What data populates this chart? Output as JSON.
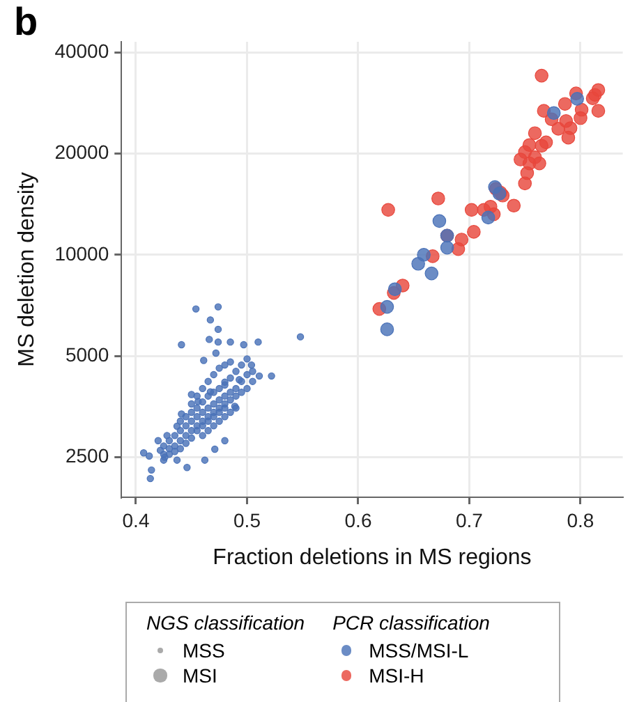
{
  "chart_data": {
    "type": "bubble",
    "title": "b",
    "xlabel": "Fraction deletions in MS regions",
    "ylabel": "MS deletion density",
    "xlim": [
      0.387,
      0.838
    ],
    "xticks": [
      0.4,
      0.5,
      0.6,
      0.7,
      0.8
    ],
    "ylim": [
      1900,
      43000
    ],
    "yticks": [
      2500,
      5000,
      10000,
      20000,
      40000
    ],
    "log": "y",
    "grid": true,
    "legend": "bottom",
    "legend_title": "PCR classification",
    "annotations": [
      "NGS classification"
    ],
    "size_legend": [
      {
        "value": 0.25,
        "label": "MSS"
      },
      {
        "value": 1,
        "label": "MSI"
      }
    ],
    "series": [
      {
        "name": "MSS/MSI-L",
        "color": "#4a72b8",
        "x": [
          0.454,
          0.474,
          0.467,
          0.474,
          0.548,
          0.441,
          0.466,
          0.474,
          0.485,
          0.51,
          0.497,
          0.472,
          0.461,
          0.504,
          0.511,
          0.522,
          0.493,
          0.48,
          0.467,
          0.456,
          0.45,
          0.489,
          0.441,
          0.437,
          0.428,
          0.422,
          0.407,
          0.412,
          0.414,
          0.413,
          0.446,
          0.462,
          0.471,
          0.48,
          0.437,
          0.426,
          0.42,
          0.425,
          0.425,
          0.425,
          0.43,
          0.43,
          0.43,
          0.435,
          0.435,
          0.435,
          0.44,
          0.44,
          0.44,
          0.44,
          0.445,
          0.445,
          0.445,
          0.445,
          0.45,
          0.45,
          0.45,
          0.45,
          0.45,
          0.455,
          0.455,
          0.455,
          0.455,
          0.455,
          0.46,
          0.46,
          0.46,
          0.46,
          0.46,
          0.46,
          0.465,
          0.465,
          0.465,
          0.465,
          0.465,
          0.465,
          0.47,
          0.47,
          0.47,
          0.47,
          0.47,
          0.47,
          0.475,
          0.475,
          0.475,
          0.475,
          0.475,
          0.475,
          0.48,
          0.48,
          0.48,
          0.48,
          0.48,
          0.48,
          0.485,
          0.485,
          0.485,
          0.485,
          0.485,
          0.49,
          0.49,
          0.49,
          0.49,
          0.495,
          0.495,
          0.495,
          0.5,
          0.5,
          0.5,
          0.505,
          0.505,
          0.797,
          0.776,
          0.723,
          0.727,
          0.717,
          0.673,
          0.68,
          0.659,
          0.654,
          0.666,
          0.633,
          0.626,
          0.626,
          0.68
        ],
        "values": [
          6900,
          7000,
          6400,
          6000,
          5700,
          5400,
          5600,
          5500,
          5500,
          5500,
          5400,
          5100,
          4850,
          4700,
          4360,
          4360,
          4250,
          4180,
          3910,
          3660,
          3840,
          3540,
          3360,
          3090,
          2900,
          2620,
          2575,
          2520,
          2290,
          2160,
          2330,
          2450,
          2640,
          2800,
          2450,
          2500,
          2800,
          2550,
          2700,
          2450,
          2650,
          2800,
          2550,
          2700,
          2900,
          2600,
          2800,
          3000,
          2650,
          3200,
          2900,
          3100,
          2750,
          3300,
          3000,
          3200,
          2850,
          3400,
          3600,
          3100,
          3300,
          3000,
          3500,
          3800,
          3200,
          3400,
          3100,
          3650,
          4000,
          2900,
          3300,
          3500,
          3200,
          3800,
          4200,
          3000,
          3400,
          3600,
          3300,
          3900,
          4400,
          3100,
          3500,
          3700,
          3400,
          4000,
          4600,
          3200,
          3600,
          3800,
          3500,
          4100,
          4700,
          3300,
          3700,
          3900,
          4300,
          4800,
          3400,
          3800,
          4000,
          4500,
          3500,
          3900,
          4200,
          4700,
          4000,
          4400,
          4900,
          4200,
          4500,
          29100,
          26400,
          15900,
          15200,
          12900,
          12600,
          10500,
          10000,
          9400,
          8800,
          7900,
          7000,
          6000,
          11400
        ],
        "sizes": [
          0.25,
          0.25,
          0.25,
          0.25,
          0.25,
          0.25,
          0.25,
          0.25,
          0.25,
          0.25,
          0.25,
          0.25,
          0.25,
          0.25,
          0.25,
          0.25,
          0.25,
          0.25,
          0.25,
          0.25,
          0.25,
          0.25,
          0.25,
          0.25,
          0.25,
          0.25,
          0.25,
          0.25,
          0.25,
          0.25,
          0.25,
          0.25,
          0.25,
          0.25,
          0.25,
          0.25,
          0.25,
          0.25,
          0.25,
          0.25,
          0.25,
          0.25,
          0.25,
          0.25,
          0.25,
          0.25,
          0.25,
          0.25,
          0.25,
          0.25,
          0.25,
          0.25,
          0.25,
          0.25,
          0.25,
          0.25,
          0.25,
          0.25,
          0.25,
          0.25,
          0.25,
          0.25,
          0.25,
          0.25,
          0.25,
          0.25,
          0.25,
          0.25,
          0.25,
          0.25,
          0.25,
          0.25,
          0.25,
          0.25,
          0.25,
          0.25,
          0.25,
          0.25,
          0.25,
          0.25,
          0.25,
          0.25,
          0.25,
          0.25,
          0.25,
          0.25,
          0.25,
          0.25,
          0.25,
          0.25,
          0.25,
          0.25,
          0.25,
          0.25,
          0.25,
          0.25,
          0.25,
          0.25,
          0.25,
          0.25,
          0.25,
          0.25,
          0.25,
          0.25,
          0.25,
          0.25,
          0.25,
          0.25,
          0.25,
          0.25,
          0.25,
          1,
          1,
          1,
          1,
          1,
          1,
          1,
          1,
          1,
          1,
          1,
          1,
          1,
          1
        ]
      },
      {
        "name": "MSI-H",
        "color": "#e8473c",
        "x": [
          0.765,
          0.796,
          0.813,
          0.816,
          0.811,
          0.767,
          0.786,
          0.801,
          0.816,
          0.8,
          0.774,
          0.787,
          0.791,
          0.78,
          0.789,
          0.759,
          0.769,
          0.754,
          0.765,
          0.75,
          0.746,
          0.759,
          0.763,
          0.754,
          0.752,
          0.75,
          0.728,
          0.73,
          0.724,
          0.74,
          0.719,
          0.713,
          0.702,
          0.722,
          0.672,
          0.627,
          0.68,
          0.693,
          0.704,
          0.69,
          0.667,
          0.64,
          0.632,
          0.619
        ],
        "values": [
          34100,
          30200,
          29900,
          30900,
          29200,
          26800,
          28100,
          27000,
          26800,
          25500,
          25300,
          25000,
          23800,
          23700,
          22300,
          23000,
          21600,
          21200,
          21100,
          20200,
          19200,
          19500,
          18700,
          18700,
          17500,
          16300,
          15300,
          15000,
          15700,
          14000,
          13900,
          13600,
          13600,
          13200,
          14700,
          13600,
          11400,
          11100,
          11700,
          10400,
          9900,
          8100,
          7700,
          6900
        ],
        "sizes": [
          1,
          1,
          1,
          1,
          1,
          1,
          1,
          1,
          1,
          1,
          1,
          1,
          1,
          1,
          1,
          1,
          1,
          1,
          1,
          1,
          1,
          1,
          1,
          1,
          1,
          1,
          1,
          1,
          1,
          1,
          1,
          1,
          1,
          1,
          1,
          1,
          1,
          1,
          1,
          1,
          1,
          1,
          1,
          1
        ]
      }
    ]
  }
}
